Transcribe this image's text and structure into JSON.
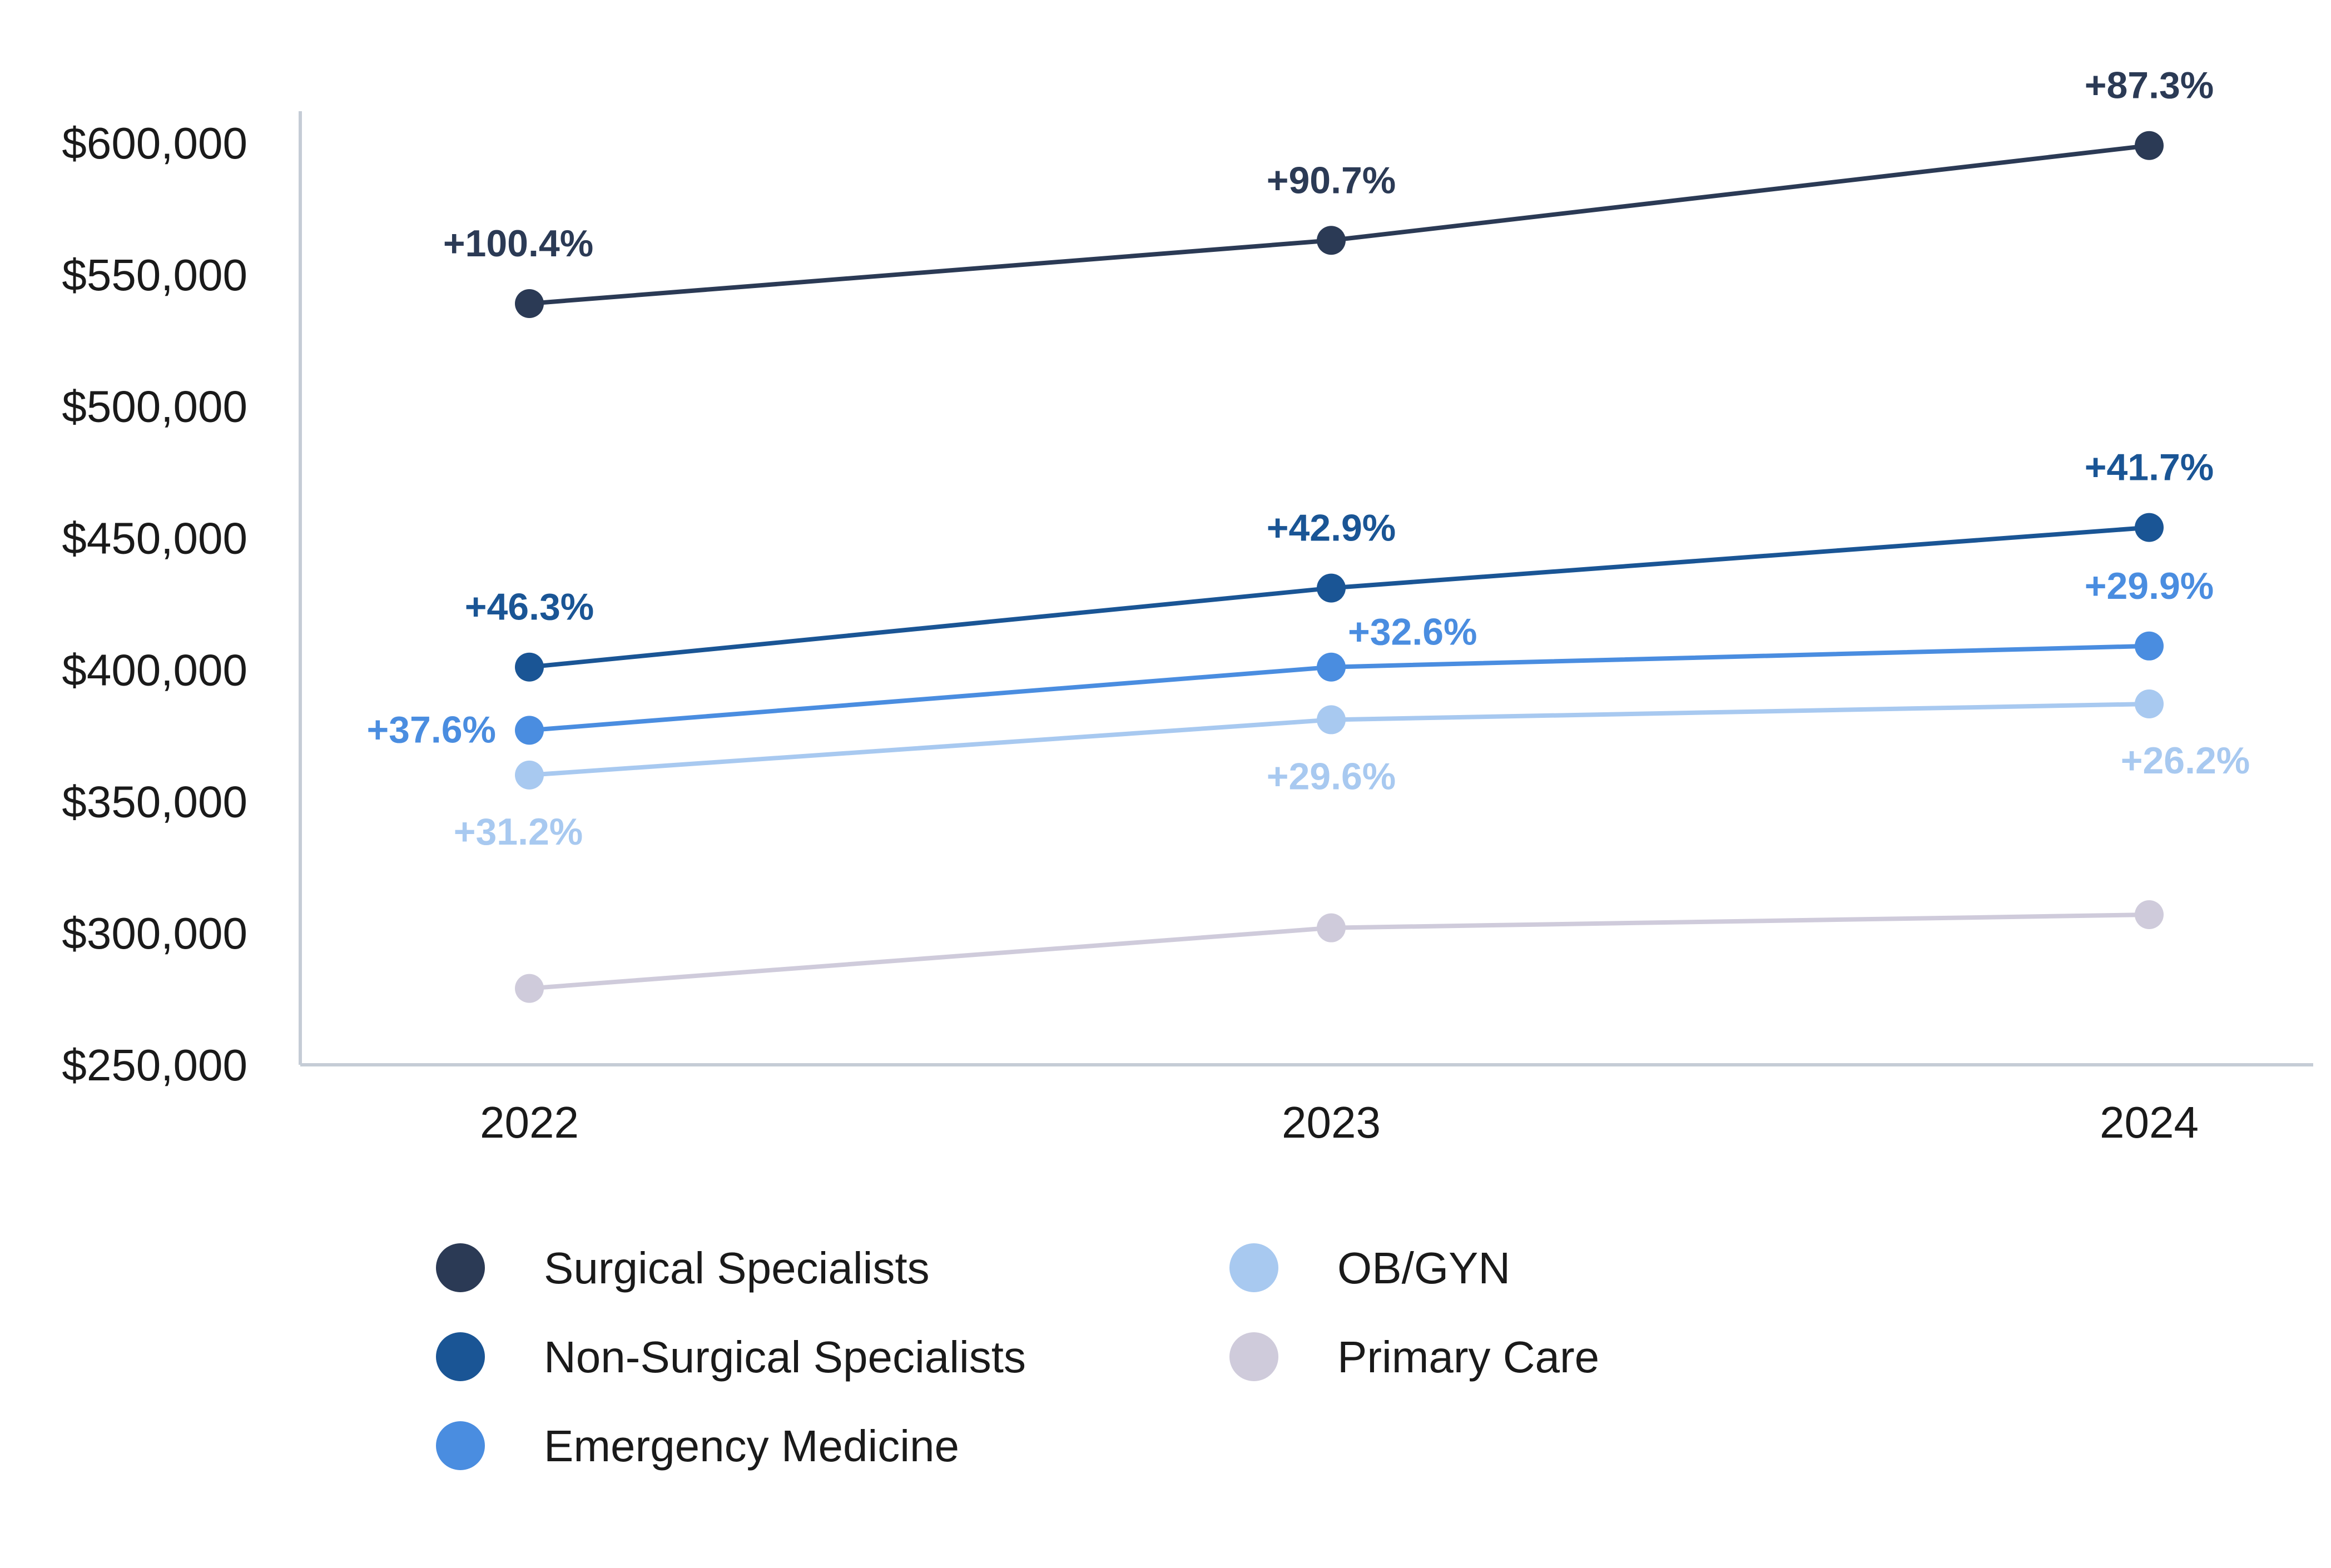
{
  "chart_data": {
    "type": "line",
    "title": "",
    "xlabel": "",
    "ylabel": "",
    "categories": [
      "2022",
      "2023",
      "2024"
    ],
    "y_ticks": [
      "$250,000",
      "$300,000",
      "$350,000",
      "$400,000",
      "$450,000",
      "$500,000",
      "$550,000",
      "$600,000"
    ],
    "y_tick_values": [
      250000,
      300000,
      350000,
      400000,
      450000,
      500000,
      550000,
      600000
    ],
    "ylim": [
      250000,
      612000
    ],
    "grid": false,
    "legend_position": "bottom",
    "series": [
      {
        "name": "Surgical Specialists",
        "color": "#2b3a55",
        "values": [
          539000,
          563000,
          599000
        ],
        "labels": [
          "+100.4%",
          "+90.7%",
          "+87.3%"
        ],
        "label_pos": [
          "above",
          "above",
          "above"
        ]
      },
      {
        "name": "Non-Surgical Specialists",
        "color": "#1a5595",
        "values": [
          401000,
          431000,
          454000
        ],
        "labels": [
          "+46.3%",
          "+42.9%",
          "+41.7%"
        ],
        "label_pos": [
          "above",
          "above",
          "above"
        ]
      },
      {
        "name": "Emergency Medicine",
        "color": "#4a8de0",
        "values": [
          377000,
          401000,
          409000
        ],
        "labels": [
          "+37.6%",
          "+32.6%",
          "+29.9%"
        ],
        "label_pos": [
          "left",
          "right",
          "above"
        ]
      },
      {
        "name": "OB/GYN",
        "color": "#a8c9f0",
        "values": [
          360000,
          381000,
          387000
        ],
        "labels": [
          "+31.2%",
          "+29.6%",
          "+26.2%"
        ],
        "label_pos": [
          "below",
          "below",
          "below"
        ]
      },
      {
        "name": "Primary Care",
        "color": "#cfcbdb",
        "values": [
          279000,
          302000,
          307000
        ],
        "labels": [],
        "label_pos": []
      }
    ]
  }
}
